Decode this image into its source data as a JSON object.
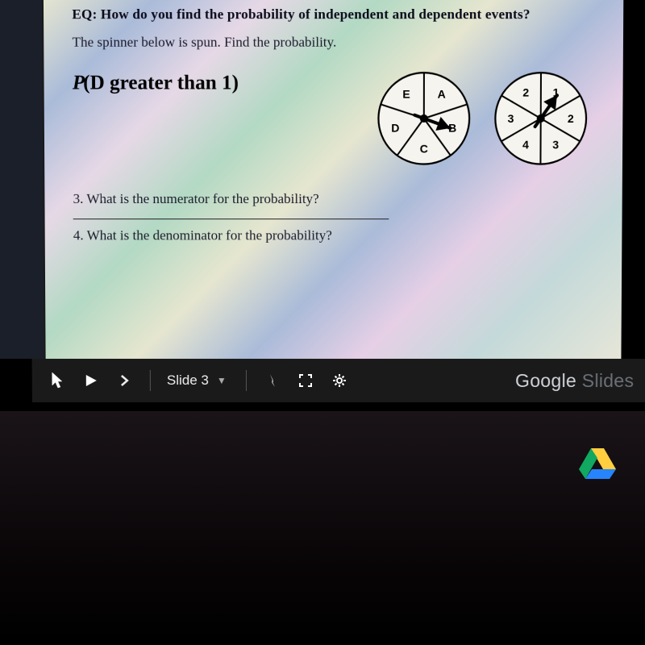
{
  "slide": {
    "eq_prefix": "EQ: ",
    "eq_text": "How do you find the probability of independent and dependent events?",
    "instruction": "The spinner below is spun. Find the probability.",
    "expression_prefix": "P",
    "expression_rest": "(D greater than 1)",
    "q3": "3.  What is the numerator for the probability?",
    "q4": "4.  What is the denominator for the probability?"
  },
  "spinnerA": {
    "type": "pie-spinner",
    "sectors": 5,
    "labels": [
      "A",
      "B",
      "C",
      "D",
      "E"
    ],
    "start_deg": -90,
    "arrow_deg": 20,
    "stroke": "#000000",
    "fill": "#f6f4ee",
    "label_fontsize": 14,
    "label_weight": "bold",
    "radius": 56,
    "hub_radius": 5
  },
  "spinnerB": {
    "type": "pie-spinner",
    "sectors": 6,
    "labels": [
      "1",
      "2",
      "3",
      "4",
      "3",
      "2"
    ],
    "start_deg": -90,
    "arrow_deg": -55,
    "stroke": "#000000",
    "fill": "#f6f4ee",
    "label_fontsize": 14,
    "label_weight": "bold",
    "radius": 56,
    "hub_radius": 5
  },
  "toolbar": {
    "slide_label": "Slide 3",
    "brand_main": "Google",
    "brand_sub": " Slides"
  },
  "colors": {
    "toolbar_bg": "#1a1a1a",
    "toolbar_fg": "#f0f0f0",
    "screen_black": "#000000"
  }
}
